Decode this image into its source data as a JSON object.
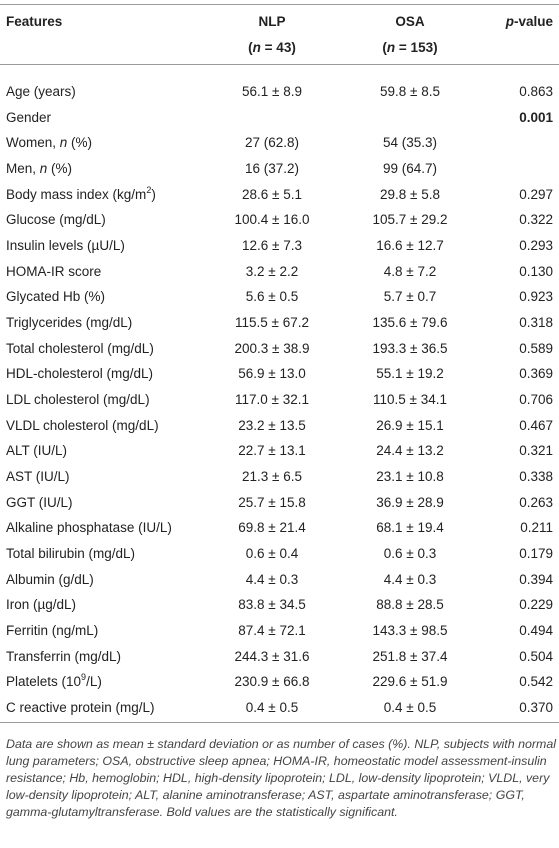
{
  "header": {
    "features": "Features",
    "nlp": "NLP",
    "nlp_n": [
      "(",
      "n",
      " = 43)"
    ],
    "osa": "OSA",
    "osa_n": [
      "(",
      "n",
      " = 153)"
    ],
    "p_value": [
      "p",
      "-value"
    ]
  },
  "rows": [
    {
      "feature": "Age (years)",
      "nlp": "56.1 ± 8.9",
      "osa": "59.8 ± 8.5",
      "p": "0.863"
    },
    {
      "feature": "Gender",
      "p": "0.001"
    },
    {
      "feature": [
        "Women, ",
        "n",
        " (%)"
      ],
      "nlp": "27 (62.8)",
      "osa": "54 (35.3)"
    },
    {
      "feature": [
        "Men, ",
        "n",
        " (%)"
      ],
      "nlp": "16 (37.2)",
      "osa": "99 (64.7)"
    },
    {
      "feature": [
        "Body mass index (kg/m",
        "2",
        ")"
      ],
      "nlp": "28.6 ± 5.1",
      "osa": "29.8 ± 5.8",
      "p": "0.297"
    },
    {
      "feature": "Glucose (mg/dL)",
      "nlp": "100.4 ± 16.0",
      "osa": "105.7 ± 29.2",
      "p": "0.322"
    },
    {
      "feature": "Insulin levels (µU/L)",
      "nlp": "12.6 ± 7.3",
      "osa": "16.6 ± 12.7",
      "p": "0.293"
    },
    {
      "feature": "HOMA-IR score",
      "nlp": "3.2 ± 2.2",
      "osa": "4.8 ± 7.2",
      "p": "0.130"
    },
    {
      "feature": "Glycated Hb (%)",
      "nlp": "5.6 ± 0.5",
      "osa": "5.7 ± 0.7",
      "p": "0.923"
    },
    {
      "feature": "Triglycerides (mg/dL)",
      "nlp": "115.5 ± 67.2",
      "osa": "135.6 ± 79.6",
      "p": "0.318"
    },
    {
      "feature": "Total cholesterol (mg/dL)",
      "nlp": "200.3 ± 38.9",
      "osa": "193.3 ± 36.5",
      "p": "0.589"
    },
    {
      "feature": "HDL-cholesterol (mg/dL)",
      "nlp": "56.9 ± 13.0",
      "osa": "55.1 ± 19.2",
      "p": "0.369"
    },
    {
      "feature": "LDL cholesterol (mg/dL)",
      "nlp": "117.0 ± 32.1",
      "osa": "110.5 ± 34.1",
      "p": "0.706"
    },
    {
      "feature": "VLDL cholesterol (mg/dL)",
      "nlp": "23.2 ± 13.5",
      "osa": "26.9 ± 15.1",
      "p": "0.467"
    },
    {
      "feature": "ALT (IU/L)",
      "nlp": "22.7 ± 13.1",
      "osa": "24.4 ± 13.2",
      "p": "0.321"
    },
    {
      "feature": "AST (IU/L)",
      "nlp": "21.3 ± 6.5",
      "osa": "23.1 ± 10.8",
      "p": "0.338"
    },
    {
      "feature": "GGT (IU/L)",
      "nlp": "25.7 ± 15.8",
      "osa": "36.9 ± 28.9",
      "p": "0.263"
    },
    {
      "feature": "Alkaline phosphatase (IU/L)",
      "nlp": "69.8 ± 21.4",
      "osa": "68.1 ± 19.4",
      "p": "0.211"
    },
    {
      "feature": "Total bilirubin (mg/dL)",
      "nlp": "0.6 ± 0.4",
      "osa": "0.6 ± 0.3",
      "p": "0.179"
    },
    {
      "feature": "Albumin (g/dL)",
      "nlp": "4.4 ± 0.3",
      "osa": "4.4 ± 0.3",
      "p": "0.394"
    },
    {
      "feature": "Iron (µg/dL)",
      "nlp": "83.8 ± 34.5",
      "osa": "88.8 ± 28.5",
      "p": "0.229"
    },
    {
      "feature": "Ferritin (ng/mL)",
      "nlp": "87.4 ± 72.1",
      "osa": "143.3 ± 98.5",
      "p": "0.494"
    },
    {
      "feature": "Transferrin (mg/dL)",
      "nlp": "244.3 ± 31.6",
      "osa": "251.8 ± 37.4",
      "p": "0.504"
    },
    {
      "feature": [
        "Platelets (10",
        "9",
        "/L)"
      ],
      "nlp": "230.9 ± 66.8",
      "osa": "229.6 ± 51.9",
      "p": "0.542"
    },
    {
      "feature": "C reactive protein (mg/L)",
      "nlp": "0.4 ± 0.5",
      "osa": "0.4 ± 0.5",
      "p": "0.370"
    }
  ],
  "footnote": {
    "text": "Data are shown as mean ± standard deviation or as number of cases (%). NLP, subjects with normal lung parameters; OSA, obstructive sleep apnea; HOMA-IR, homeostatic model assessment-insulin resistance; Hb, hemoglobin; HDL, high-density lipoprotein; LDL, low-density lipoprotein; VLDL, very low-density lipoprotein; ALT, alanine aminotransferase; AST, aspartate aminotransferase; GGT, gamma-glutamyltransferase.",
    "note": "Bold values are the statistically significant."
  }
}
